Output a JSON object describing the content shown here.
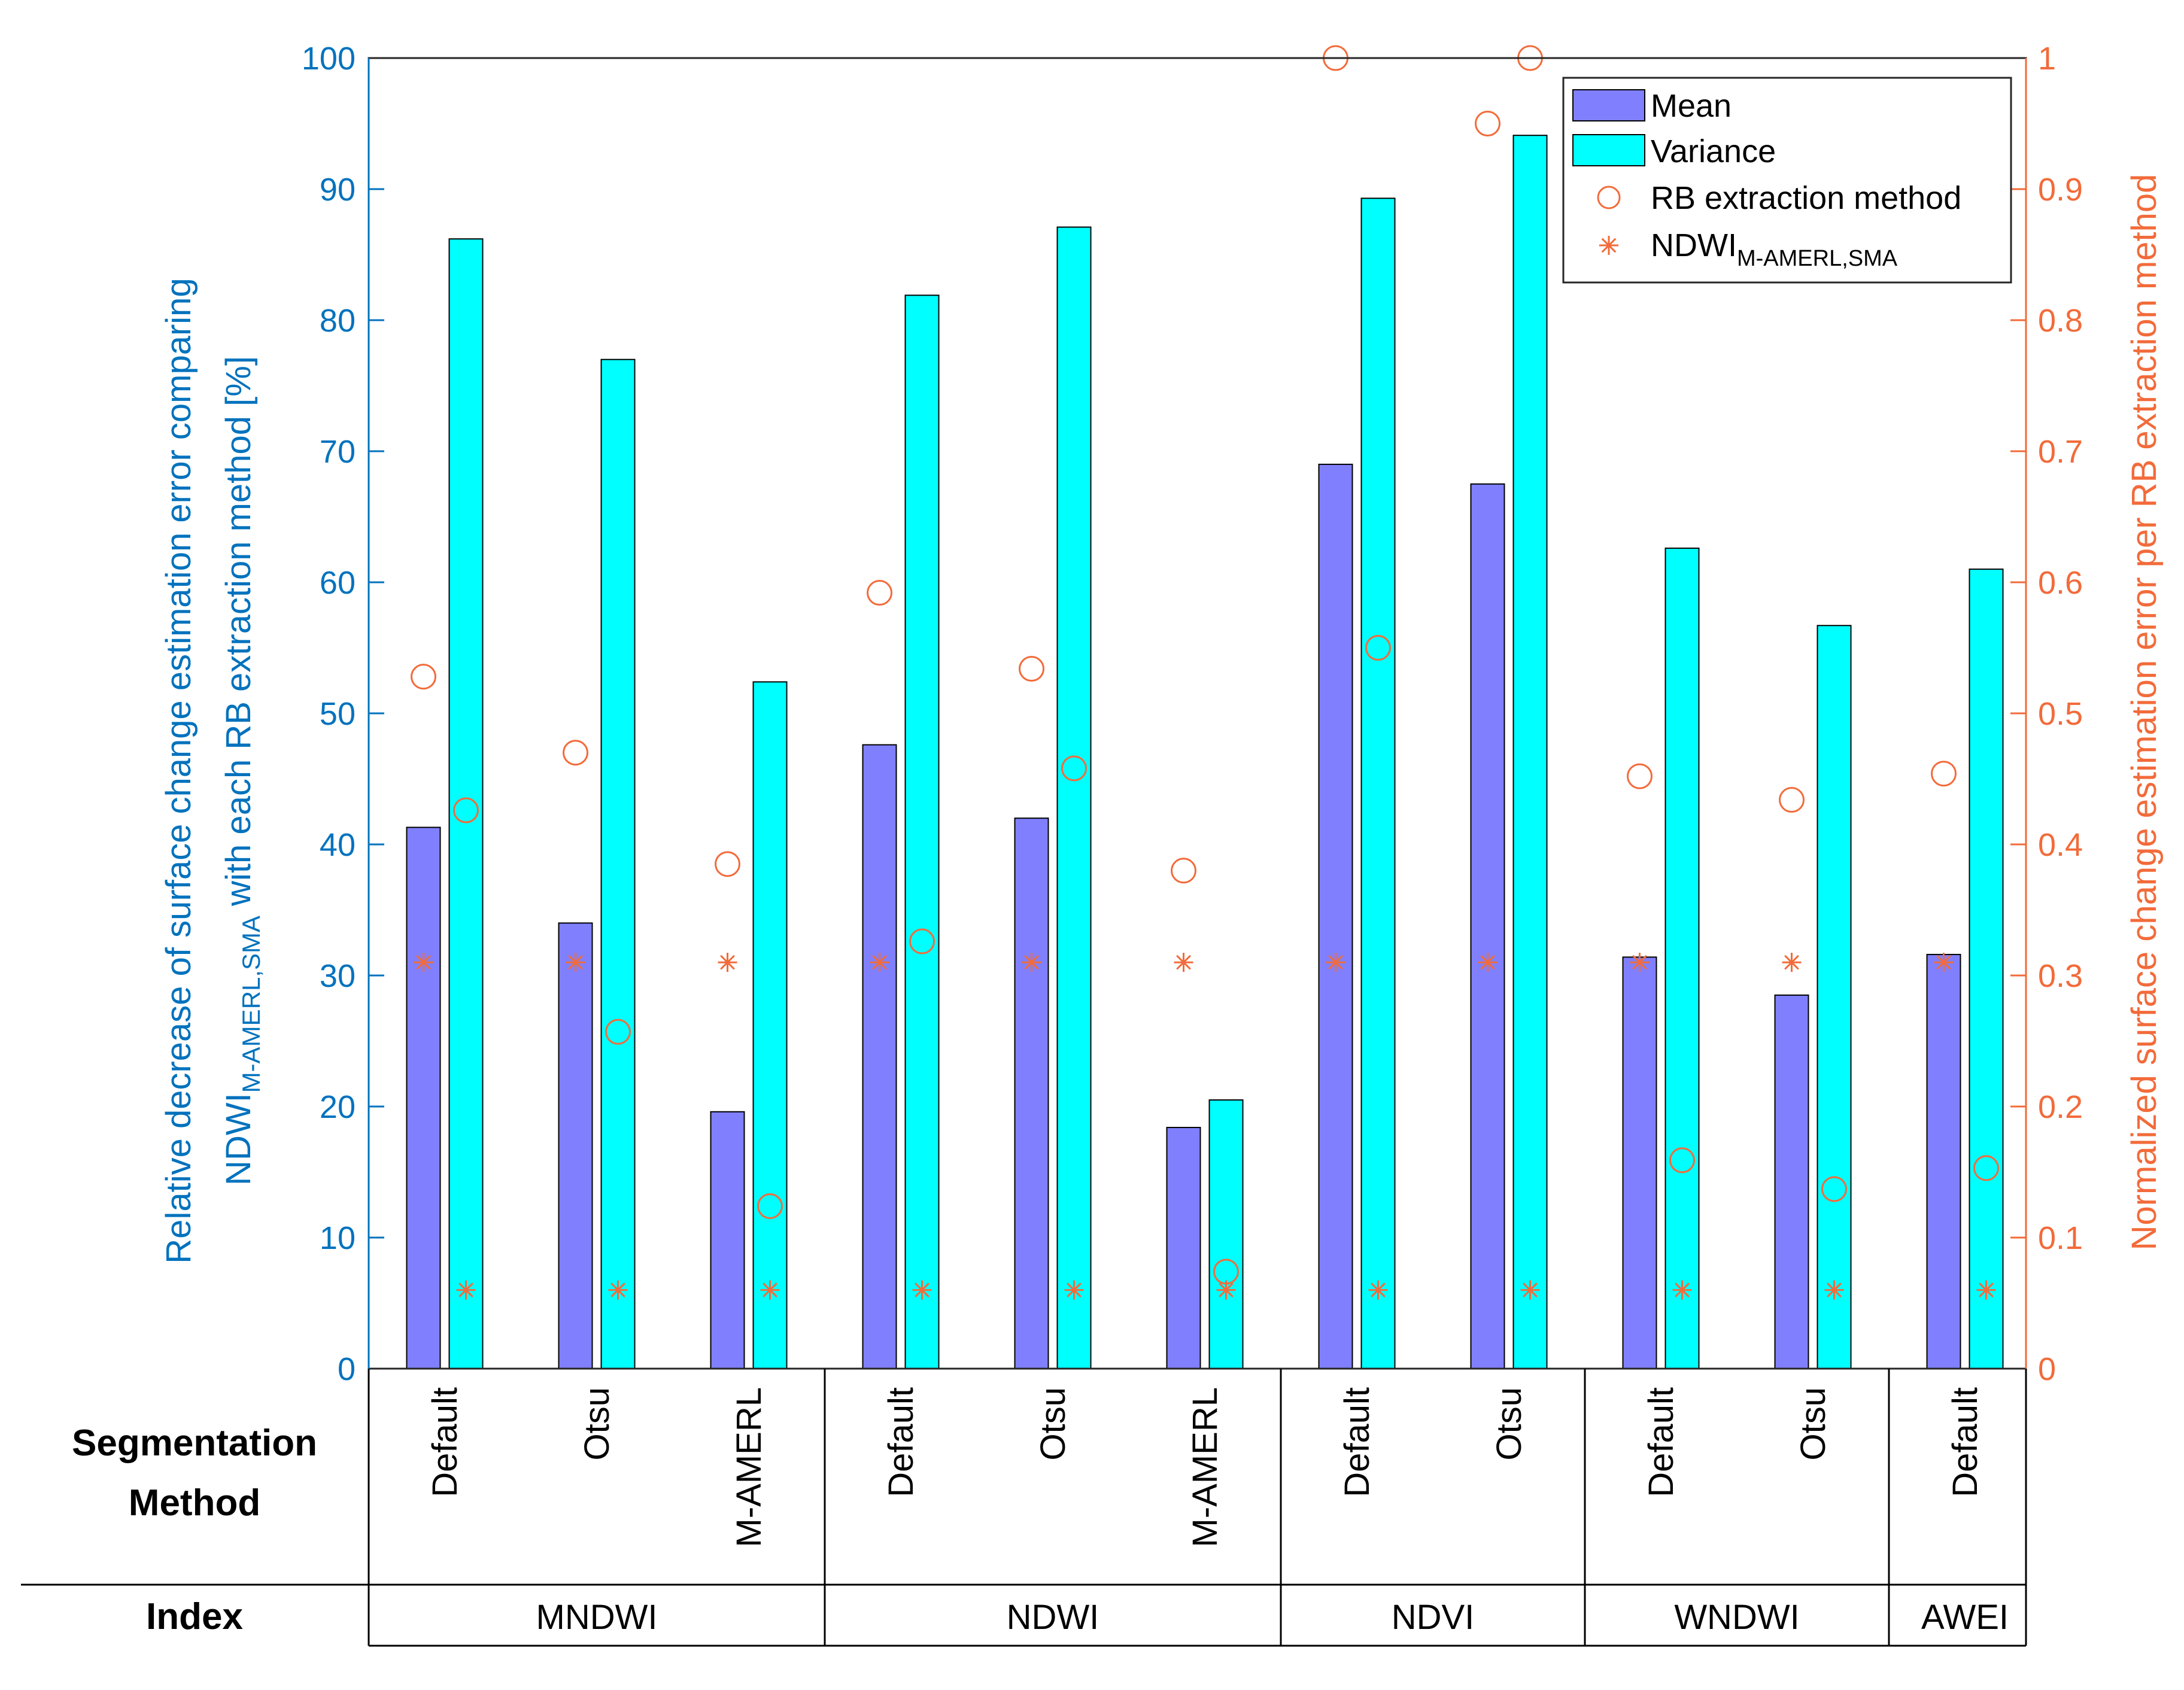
{
  "colors": {
    "mean": "#8080ff",
    "variance": "#00ffff",
    "marker": "#f26b3a",
    "left_axis": "#0072bd",
    "right_axis": "#f26b3a",
    "ink": "#000000"
  },
  "chart_data": {
    "type": "bar",
    "title": "",
    "ylabel_left": {
      "line1": "Relative decrease of surface change estimation error comparing",
      "line2_base": "NDWI",
      "line2_sub": "M-AMERL,SMA",
      "line2_rest": " with each RB extraction method [%]"
    },
    "ylabel_right": "Normalized surface change estimation error per RB extraction method",
    "ylim_left": [
      0,
      100
    ],
    "ylim_right": [
      0,
      1
    ],
    "yticks_left": [
      "0",
      "10",
      "20",
      "30",
      "40",
      "50",
      "60",
      "70",
      "80",
      "90",
      "100"
    ],
    "yticks_right": [
      "0",
      "0.1",
      "0.2",
      "0.3",
      "0.4",
      "0.5",
      "0.6",
      "0.7",
      "0.8",
      "0.9",
      "1"
    ],
    "legend": {
      "position": "top-right",
      "mean": "Mean",
      "variance": "Variance",
      "rb": "RB extraction method",
      "ndwi_base": "NDWI",
      "ndwi_sub": "M-AMERL,SMA"
    },
    "segmentation_label_1": "Segmentation",
    "segmentation_label_2": "Method",
    "index_label": "Index",
    "categories": [
      "Default",
      "Otsu",
      "M-AMERL",
      "Default",
      "Otsu",
      "M-AMERL",
      "Default",
      "Otsu",
      "Default",
      "Otsu",
      "Default"
    ],
    "index_groups": [
      {
        "name": "MNDWI",
        "count": 3
      },
      {
        "name": "NDWI",
        "count": 3
      },
      {
        "name": "NDVI",
        "count": 2
      },
      {
        "name": "WNDWI",
        "count": 2
      },
      {
        "name": "AWEI",
        "count": 1
      }
    ],
    "series": [
      {
        "name": "Mean",
        "axis": "left",
        "values": [
          41.3,
          34.0,
          19.6,
          47.6,
          42.0,
          18.4,
          69.0,
          67.5,
          31.4,
          28.5,
          31.6
        ]
      },
      {
        "name": "Variance",
        "axis": "left",
        "values": [
          86.2,
          77.0,
          52.4,
          81.9,
          87.1,
          20.5,
          89.3,
          94.1,
          62.6,
          56.7,
          61.0
        ]
      }
    ],
    "markers": {
      "rb_extraction_mean": [
        0.528,
        0.47,
        0.385,
        0.592,
        0.534,
        0.38,
        1.0,
        0.95,
        0.452,
        0.434,
        0.454
      ],
      "rb_extraction_variance": [
        0.426,
        0.257,
        0.124,
        0.326,
        0.458,
        0.074,
        0.55,
        1.0,
        0.159,
        0.137,
        0.153
      ],
      "ndwi_mean": [
        0.31,
        0.31,
        0.31,
        0.31,
        0.31,
        0.31,
        0.31,
        0.31,
        0.31,
        0.31,
        0.31
      ],
      "ndwi_variance": [
        0.06,
        0.06,
        0.06,
        0.06,
        0.06,
        0.06,
        0.06,
        0.06,
        0.06,
        0.06,
        0.06
      ]
    }
  }
}
